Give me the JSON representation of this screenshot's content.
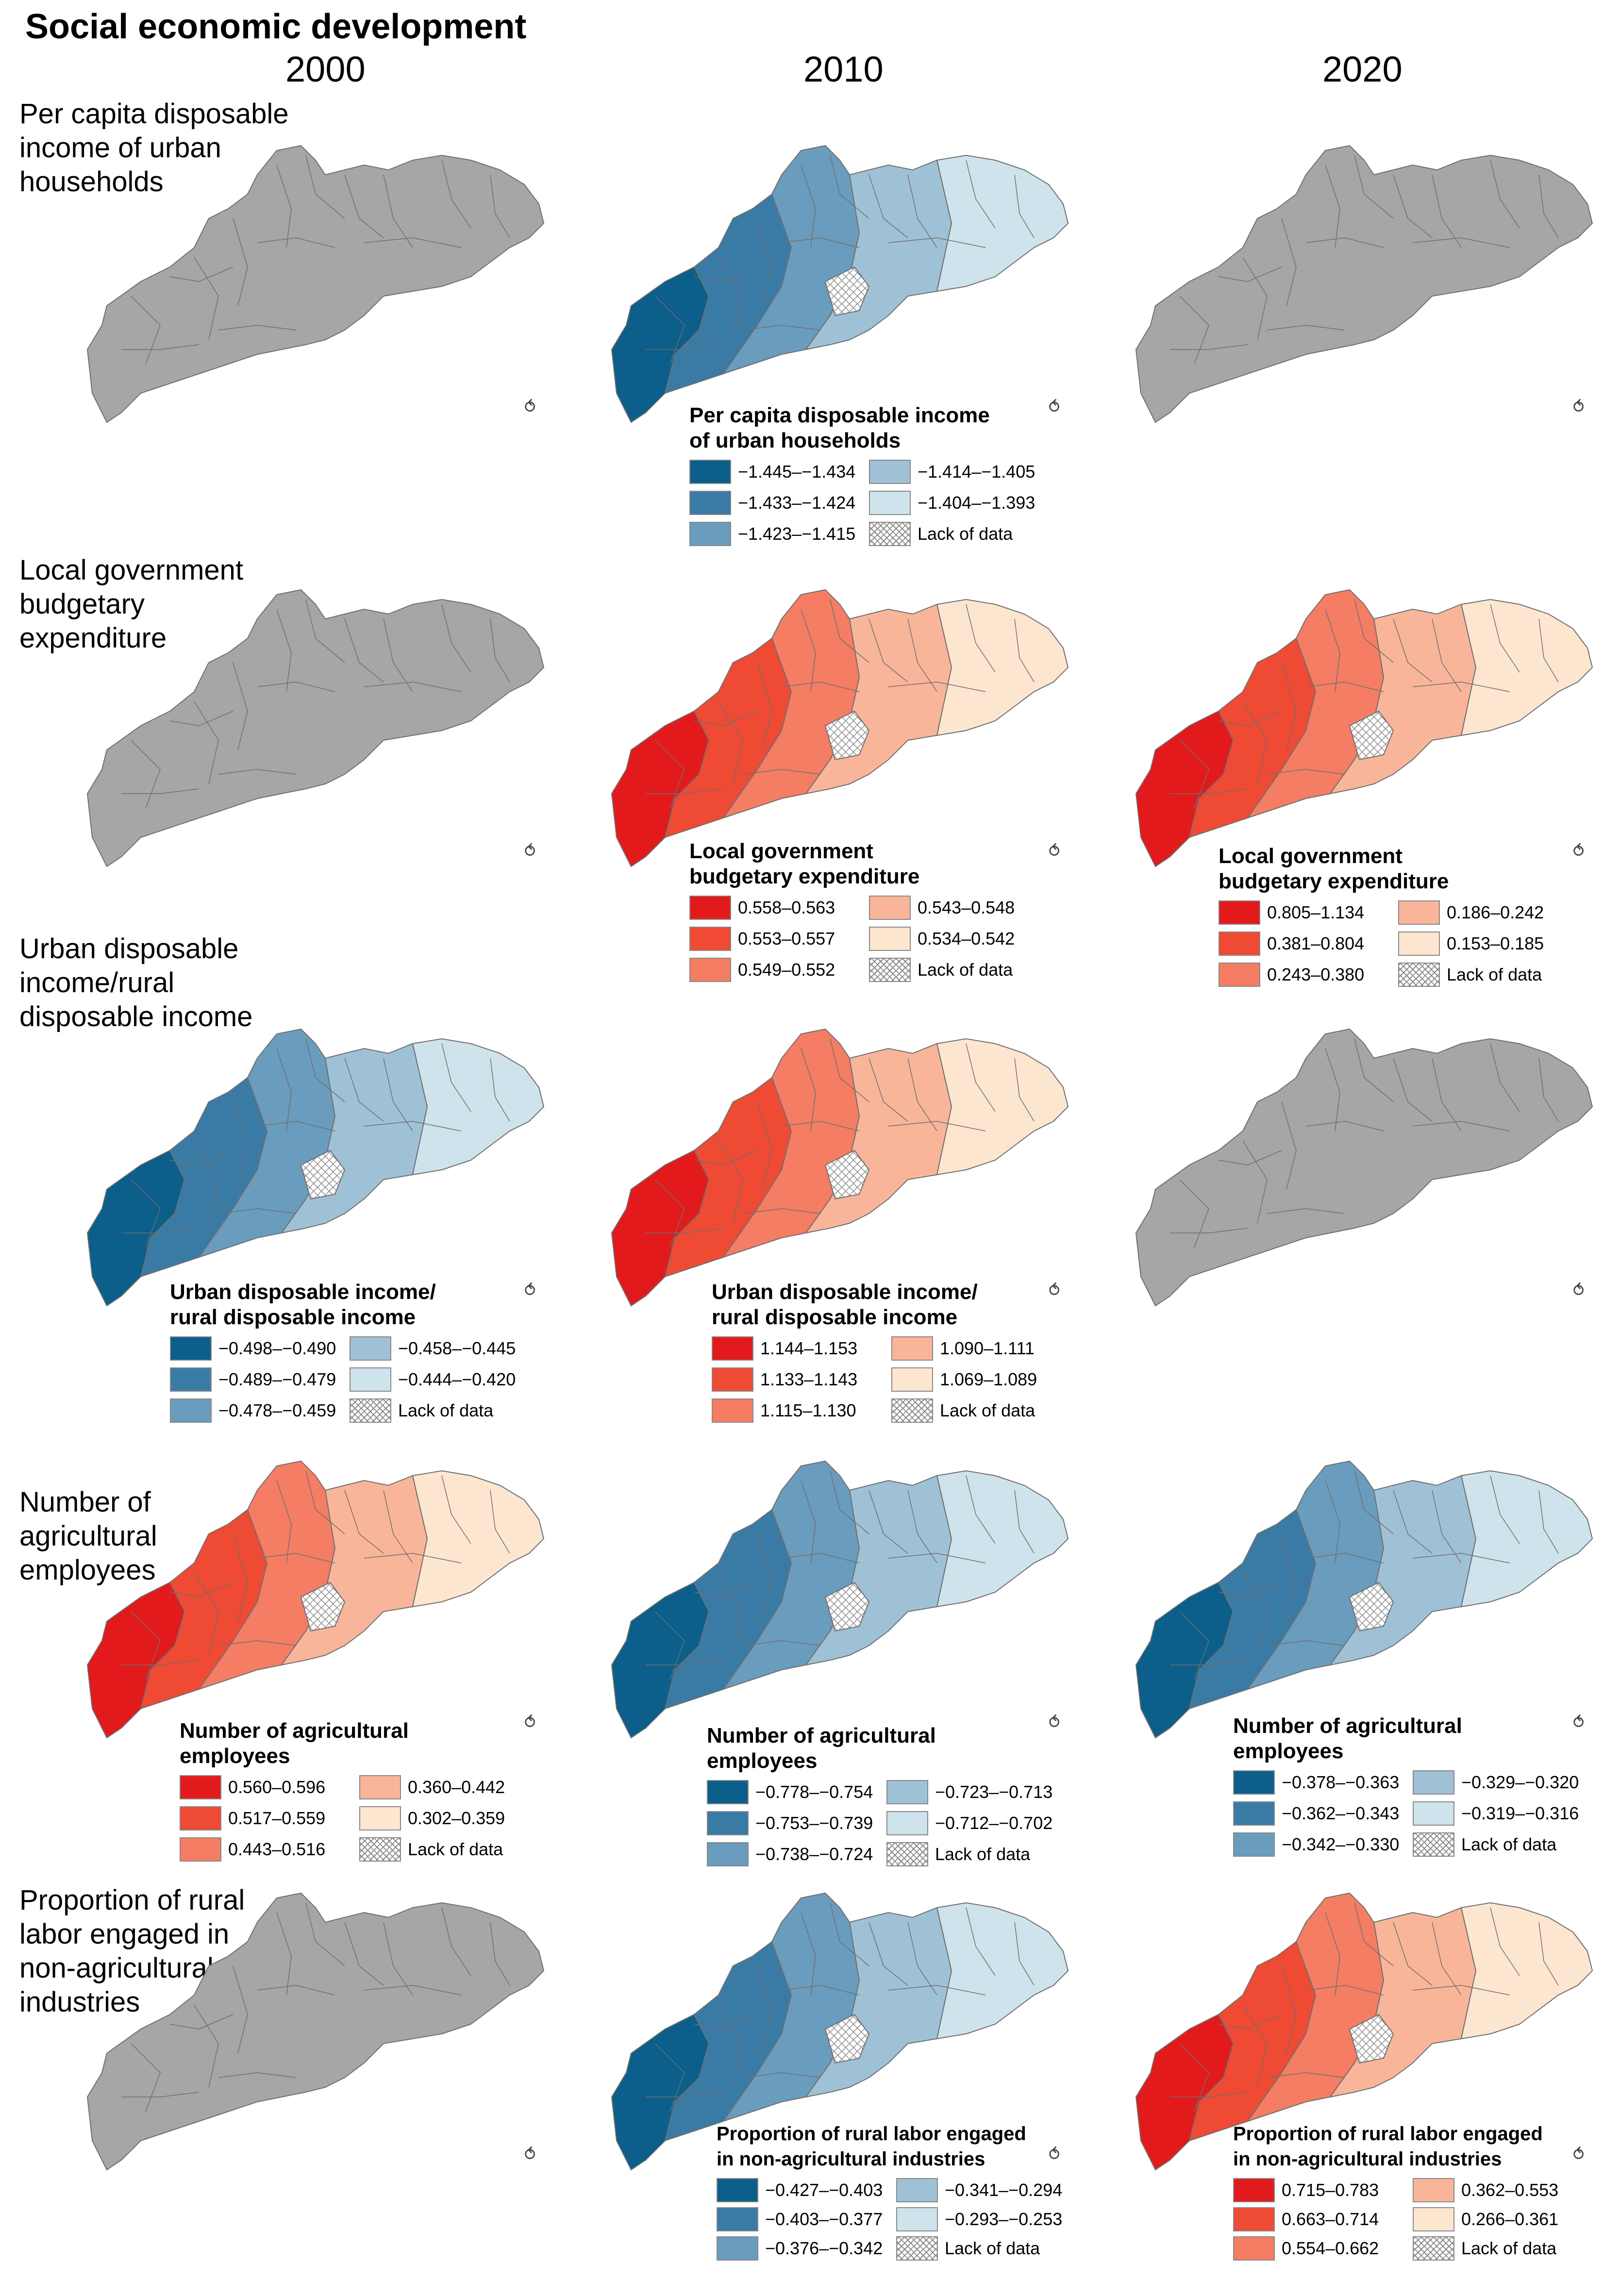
{
  "title": "Social economic development",
  "years": [
    "2000",
    "2010",
    "2020"
  ],
  "colors": {
    "no_data_region": "#a6a6a6",
    "outline": "#6f6f6f",
    "lack_of_data_hatch": "#8a8a8a",
    "blue_5": [
      "#0b5f8a",
      "#3a7ba6",
      "#6a9cbd",
      "#9fc1d6",
      "#cfe3ec"
    ],
    "red_5": [
      "#e31a1c",
      "#ef4a34",
      "#f47d63",
      "#f9b59a",
      "#fde6d0"
    ]
  },
  "north_arrow_icon": "north-arrow-icon",
  "rows": [
    {
      "label_lines": [
        "Per capita disposable",
        "income of urban",
        "households"
      ],
      "panels": [
        {
          "year": "2000",
          "status": "no-data",
          "legend": null
        },
        {
          "year": "2010",
          "status": "choropleth",
          "scheme": "blue",
          "legend": {
            "title_lines": [
              "Per capita disposable income",
              "of urban households"
            ],
            "classes": [
              "−1.445–−1.434",
              "−1.433–−1.424",
              "−1.423–−1.415",
              "−1.414–−1.405",
              "−1.404–−1.393"
            ],
            "lack_label": "Lack of data"
          }
        },
        {
          "year": "2020",
          "status": "no-data",
          "legend": null
        }
      ]
    },
    {
      "label_lines": [
        "Local government",
        "budgetary",
        "expenditure"
      ],
      "panels": [
        {
          "year": "2000",
          "status": "no-data",
          "legend": null
        },
        {
          "year": "2010",
          "status": "choropleth",
          "scheme": "red",
          "legend": {
            "title_lines": [
              "Local government",
              "budgetary expenditure"
            ],
            "classes": [
              "0.558–0.563",
              "0.553–0.557",
              "0.549–0.552",
              "0.543–0.548",
              "0.534–0.542"
            ],
            "lack_label": "Lack of data"
          }
        },
        {
          "year": "2020",
          "status": "choropleth",
          "scheme": "red",
          "legend": {
            "title_lines": [
              "Local government",
              "budgetary expenditure"
            ],
            "classes": [
              "0.805–1.134",
              "0.381–0.804",
              "0.243–0.380",
              "0.186–0.242",
              "0.153–0.185"
            ],
            "lack_label": "Lack of data"
          }
        }
      ]
    },
    {
      "label_lines": [
        "Urban disposable",
        "income/rural",
        "disposable income"
      ],
      "panels": [
        {
          "year": "2000",
          "status": "choropleth",
          "scheme": "blue",
          "legend": {
            "title_lines": [
              "Urban disposable income/",
              "rural disposable income"
            ],
            "classes": [
              "−0.498–−0.490",
              "−0.489–−0.479",
              "−0.478–−0.459",
              "−0.458–−0.445",
              "−0.444–−0.420"
            ],
            "lack_label": "Lack of data"
          }
        },
        {
          "year": "2010",
          "status": "choropleth",
          "scheme": "red",
          "legend": {
            "title_lines": [
              "Urban disposable income/",
              "rural disposable income"
            ],
            "classes": [
              "1.144–1.153",
              "1.133–1.143",
              "1.115–1.130",
              "1.090–1.111",
              "1.069–1.089"
            ],
            "lack_label": "Lack of data"
          }
        },
        {
          "year": "2020",
          "status": "no-data",
          "legend": null
        }
      ]
    },
    {
      "label_lines": [
        "Number of",
        "agricultural",
        "employees"
      ],
      "panels": [
        {
          "year": "2000",
          "status": "choropleth",
          "scheme": "red",
          "legend": {
            "title_lines": [
              "Number of agricultural",
              "employees"
            ],
            "classes": [
              "0.560–0.596",
              "0.517–0.559",
              "0.443–0.516",
              "0.360–0.442",
              "0.302–0.359"
            ],
            "lack_label": "Lack of data"
          }
        },
        {
          "year": "2010",
          "status": "choropleth",
          "scheme": "blue",
          "legend": {
            "title_lines": [
              "Number of agricultural",
              "employees"
            ],
            "classes": [
              "−0.778–−0.754",
              "−0.753–−0.739",
              "−0.738–−0.724",
              "−0.723–−0.713",
              "−0.712–−0.702"
            ],
            "lack_label": "Lack of data"
          }
        },
        {
          "year": "2020",
          "status": "choropleth",
          "scheme": "blue",
          "legend": {
            "title_lines": [
              "Number of agricultural",
              "employees"
            ],
            "classes": [
              "−0.378–−0.363",
              "−0.362–−0.343",
              "−0.342–−0.330",
              "−0.329–−0.320",
              "−0.319–−0.316"
            ],
            "lack_label": "Lack of data"
          }
        }
      ]
    },
    {
      "label_lines": [
        "Proportion of rural",
        "labor engaged in",
        "non-agricultural",
        "industries"
      ],
      "panels": [
        {
          "year": "2000",
          "status": "no-data",
          "legend": null
        },
        {
          "year": "2010",
          "status": "choropleth",
          "scheme": "blue",
          "legend": {
            "title_lines": [
              "Proportion of rural labor engaged",
              "in non-agricultural industries"
            ],
            "classes": [
              "−0.427–−0.403",
              "−0.403–−0.377",
              "−0.376–−0.342",
              "−0.341–−0.294",
              "−0.293–−0.253"
            ],
            "lack_label": "Lack of data"
          }
        },
        {
          "year": "2020",
          "status": "choropleth",
          "scheme": "red",
          "legend": {
            "title_lines": [
              "Proportion of rural labor engaged",
              "in non-agricultural industries"
            ],
            "classes": [
              "0.715–0.783",
              "0.663–0.714",
              "0.554–0.662",
              "0.362–0.553",
              "0.266–0.361"
            ],
            "lack_label": "Lack of data"
          }
        }
      ]
    }
  ]
}
